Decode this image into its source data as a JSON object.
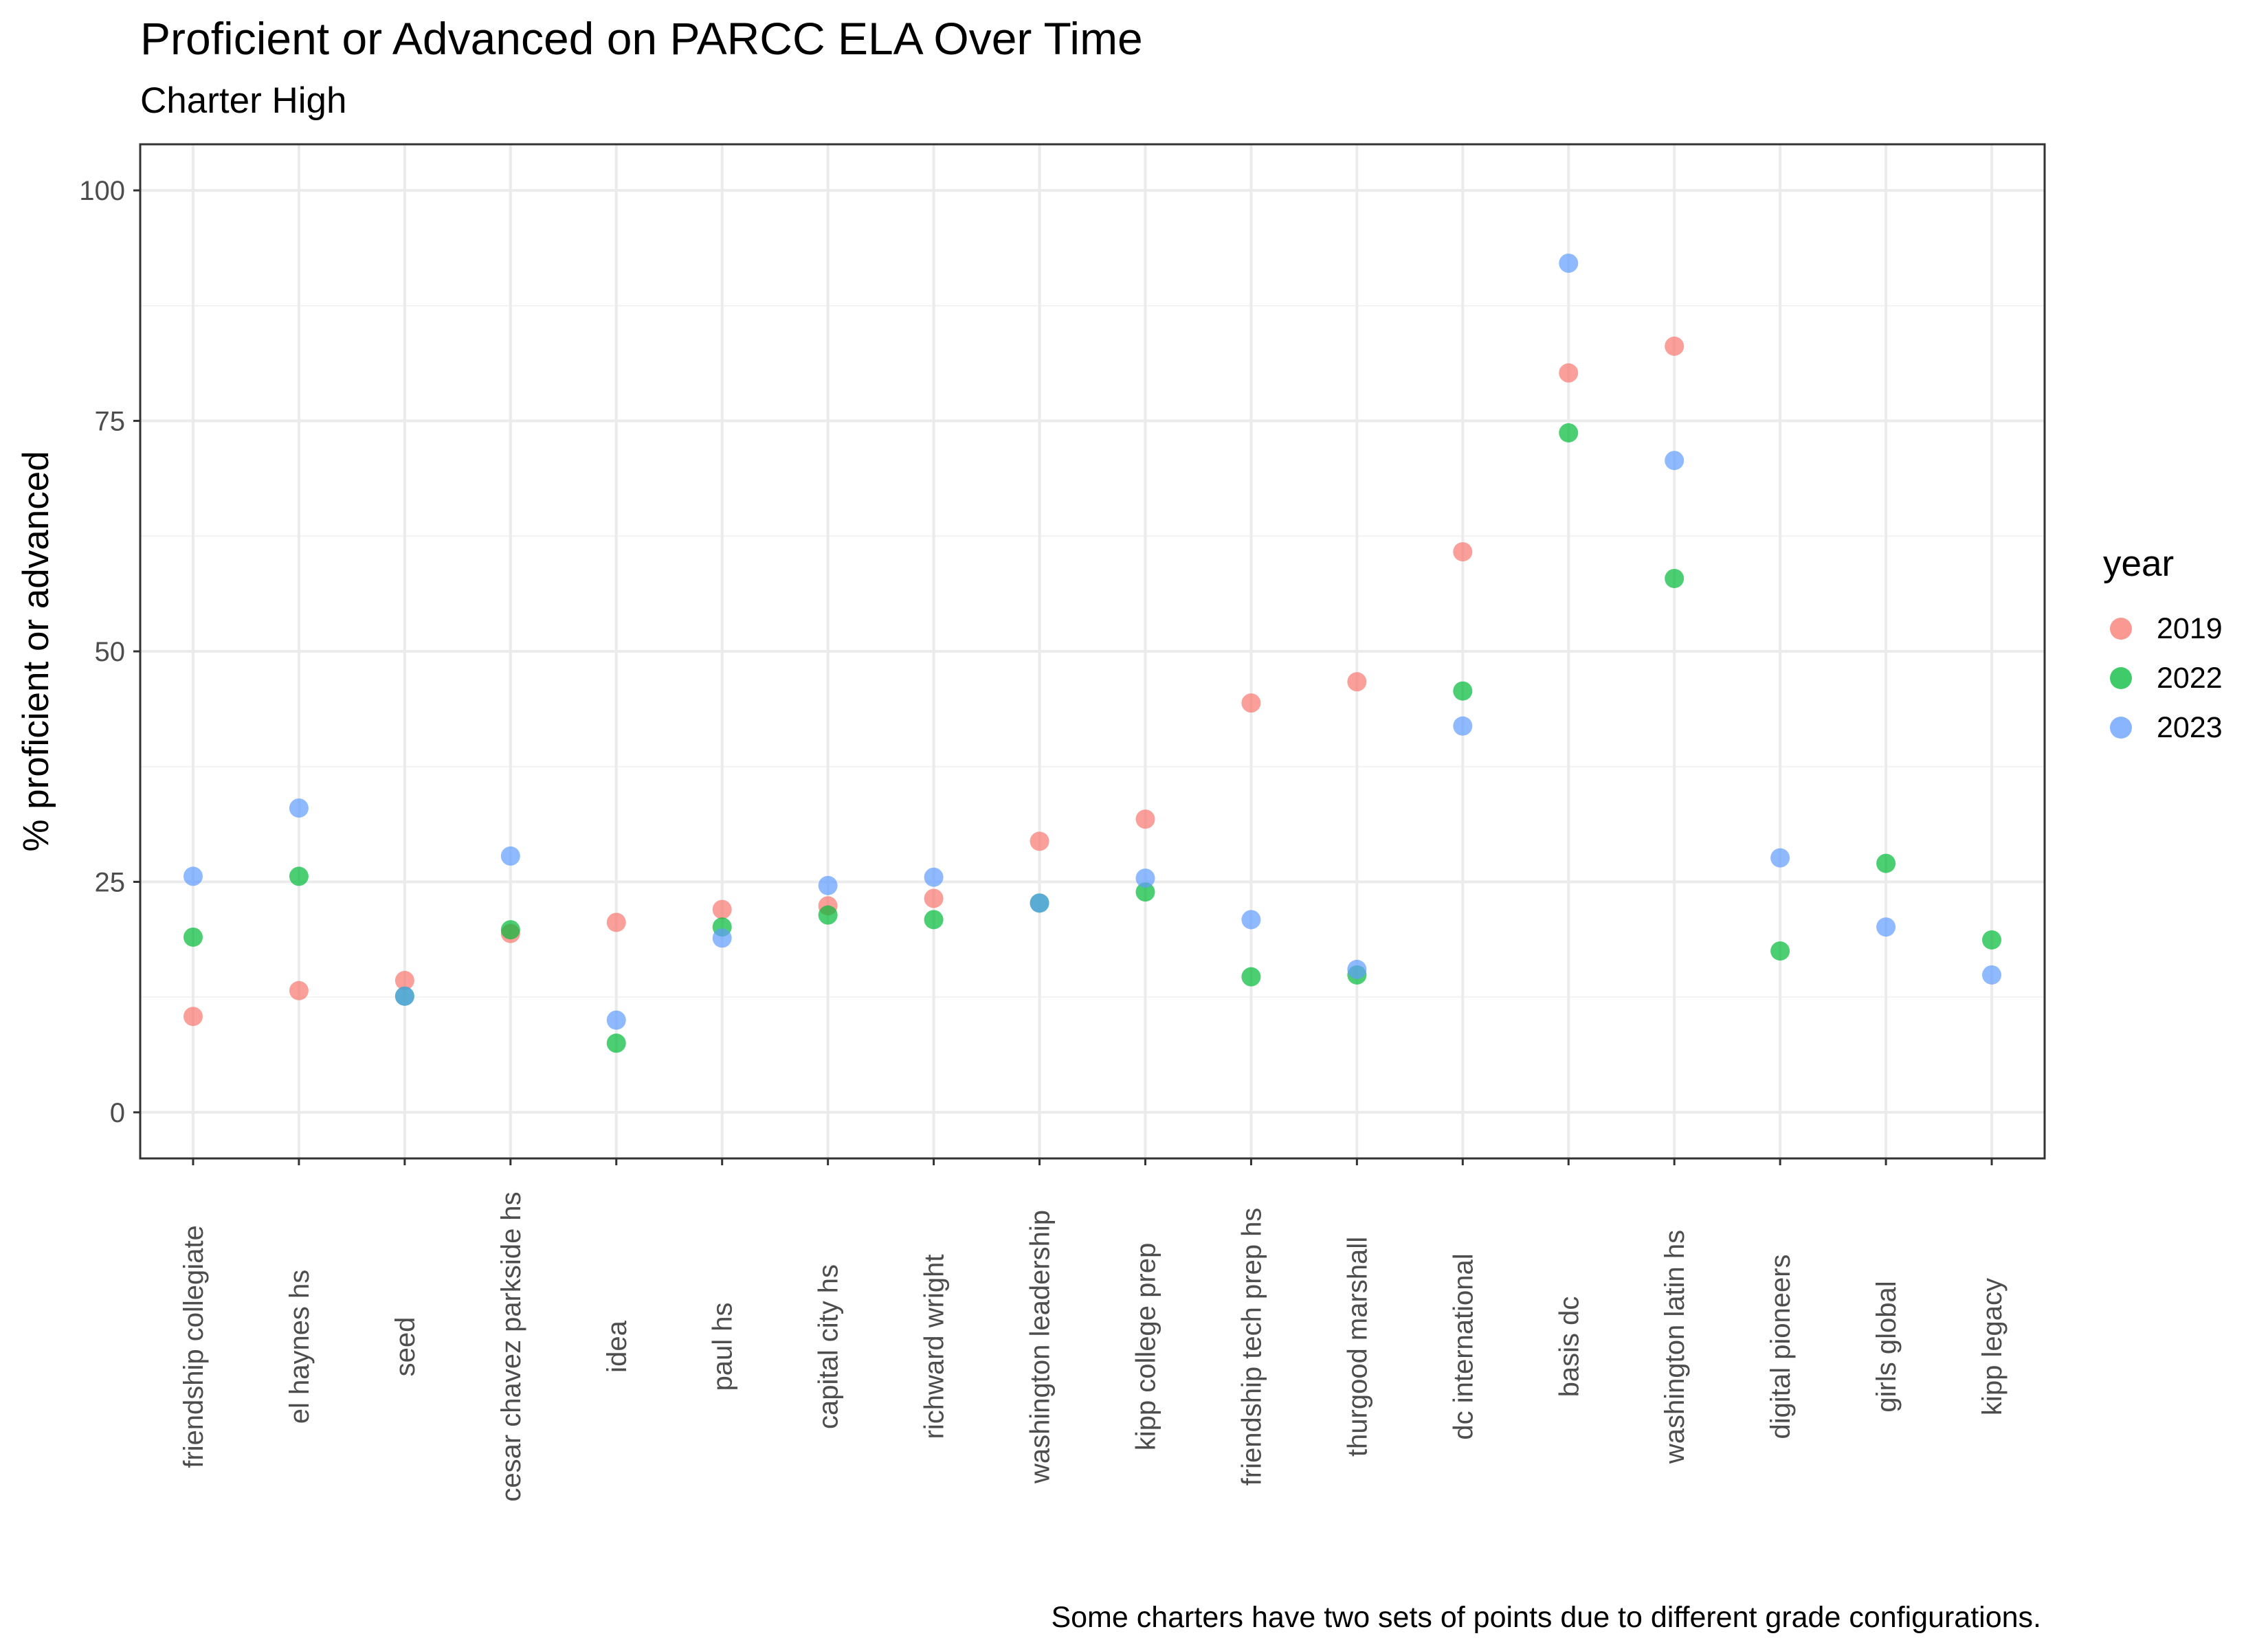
{
  "title": "Proficient or Advanced on PARCC ELA Over Time",
  "subtitle": "Charter High",
  "caption": "Some charters have two sets of points due to different grade configurations.",
  "colors": {
    "2019": "#F8766D",
    "2022": "#00BA38",
    "2023": "#619CFF"
  },
  "legend": {
    "title": "year",
    "items": [
      "2019",
      "2022",
      "2023"
    ]
  },
  "chart_data": {
    "type": "scatter",
    "title": "Proficient or Advanced on PARCC ELA Over Time",
    "subtitle": "Charter High",
    "xlabel": "",
    "ylabel": "% proficient or advanced",
    "ylim": [
      -5,
      105
    ],
    "yticks": [
      0,
      25,
      50,
      75,
      100
    ],
    "grid": true,
    "legend_position": "right",
    "categories": [
      "friendship collegiate",
      "el haynes hs",
      "seed",
      "cesar chavez parkside hs",
      "idea",
      "paul hs",
      "capital city hs",
      "richward wright",
      "washington leadership",
      "kipp college prep",
      "friendship tech prep hs",
      "thurgood marshall",
      "dc international",
      "basis dc",
      "washington latin hs",
      "digital pioneers",
      "girls global",
      "kipp legacy"
    ],
    "series": [
      {
        "name": "2019",
        "values": [
          10.4,
          13.2,
          14.3,
          19.4,
          20.6,
          22,
          22.4,
          23.2,
          29.4,
          31.8,
          44.4,
          46.7,
          60.8,
          80.2,
          83.1,
          null,
          null,
          null
        ]
      },
      {
        "name": "2022",
        "values": [
          19,
          25.6,
          12.6,
          19.8,
          7.5,
          20.1,
          21.4,
          20.9,
          22.7,
          23.9,
          14.7,
          14.9,
          45.7,
          73.7,
          57.9,
          17.5,
          27,
          18.7
        ]
      },
      {
        "name": "2023",
        "values": [
          25.6,
          33,
          12.6,
          27.8,
          10,
          18.9,
          24.6,
          25.5,
          22.7,
          25.4,
          20.9,
          15.5,
          41.9,
          92.1,
          70.7,
          27.6,
          20.1,
          14.9
        ]
      }
    ]
  }
}
